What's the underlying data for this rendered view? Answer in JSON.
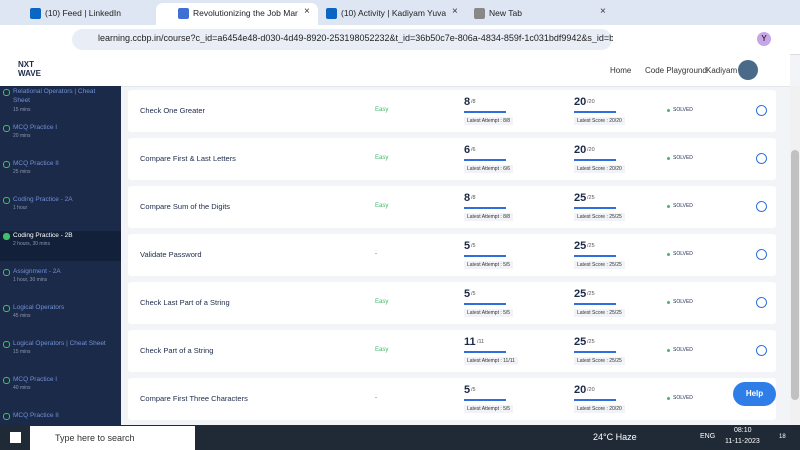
{
  "browser": {
    "tabs": [
      "(10) Feed | LinkedIn",
      "Revolutionizing the Job Market",
      "(10) Activity | Kadiyam Yuvaraj",
      "New Tab"
    ],
    "url": "learning.ccbp.in/course?c_id=a6454e48-d030-4d49-8920-253198052232&t_id=36b50c7e-806a-4834-859f-1c031bdf9942&s_id=b51...",
    "profile": "Y"
  },
  "header": {
    "logo": [
      "NXT",
      "WAVE"
    ],
    "nav": [
      "Home",
      "Code Playground",
      "Kadiyam"
    ]
  },
  "sidebar": [
    {
      "title": "Relational Operators | Cheat Sheet",
      "duration": "15 mins"
    },
    {
      "title": "MCQ Practice I",
      "duration": "20 mins"
    },
    {
      "title": "MCQ Practice II",
      "duration": "25 mins"
    },
    {
      "title": "Coding Practice - 2A",
      "duration": "1 hour"
    },
    {
      "title": "Coding Practice - 2B",
      "duration": "2 hours, 30 mins"
    },
    {
      "title": "Assignment - 2A",
      "duration": "1 hour, 30 mins"
    },
    {
      "title": "Logical Operators",
      "duration": "45 mins"
    },
    {
      "title": "Logical Operators | Cheat Sheet",
      "duration": "15 mins"
    },
    {
      "title": "MCQ Practice I",
      "duration": "40 mins"
    },
    {
      "title": "MCQ Practice II"
    }
  ],
  "questions": [
    {
      "name": "Check One Greater",
      "difficulty": "Easy",
      "attempt": "8",
      "attempt_of": "/8",
      "attempt_label": "Latest Attempt : 8/8",
      "score": "20",
      "score_of": "/20",
      "score_label": "Latest Score : 20/20",
      "status": "SOLVED"
    },
    {
      "name": "Compare First & Last Letters",
      "difficulty": "Easy",
      "attempt": "6",
      "attempt_of": "/6",
      "attempt_label": "Latest Attempt : 6/6",
      "score": "20",
      "score_of": "/20",
      "score_label": "Latest Score : 20/20",
      "status": "SOLVED"
    },
    {
      "name": "Compare Sum of the Digits",
      "difficulty": "Easy",
      "attempt": "8",
      "attempt_of": "/8",
      "attempt_label": "Latest Attempt : 8/8",
      "score": "25",
      "score_of": "/25",
      "score_label": "Latest Score : 25/25",
      "status": "SOLVED"
    },
    {
      "name": "Validate Password",
      "difficulty": "-",
      "attempt": "5",
      "attempt_of": "/5",
      "attempt_label": "Latest Attempt : 5/5",
      "score": "25",
      "score_of": "/25",
      "score_label": "Latest Score : 25/25",
      "status": "SOLVED"
    },
    {
      "name": "Check Last Part of a String",
      "difficulty": "Easy",
      "attempt": "5",
      "attempt_of": "/5",
      "attempt_label": "Latest Attempt : 5/5",
      "score": "25",
      "score_of": "/25",
      "score_label": "Latest Score : 25/25",
      "status": "SOLVED"
    },
    {
      "name": "Check Part of a String",
      "difficulty": "Easy",
      "attempt": "11",
      "attempt_of": "/11",
      "attempt_label": "Latest Attempt : 11/11",
      "score": "25",
      "score_of": "/25",
      "score_label": "Latest Score : 25/25",
      "status": "SOLVED"
    },
    {
      "name": "Compare First Three Characters",
      "difficulty": "-",
      "attempt": "5",
      "attempt_of": "/5",
      "attempt_label": "Latest Attempt : 5/5",
      "score": "20",
      "score_of": "/20",
      "score_label": "Latest Score : 20/20",
      "status": "SOLVED"
    }
  ],
  "help": "Help",
  "taskbar": {
    "search": "Type here to search",
    "weather": "24°C Haze",
    "lang": "ENG",
    "time": "08:10",
    "date": "11-11-2023",
    "badge": "18"
  }
}
